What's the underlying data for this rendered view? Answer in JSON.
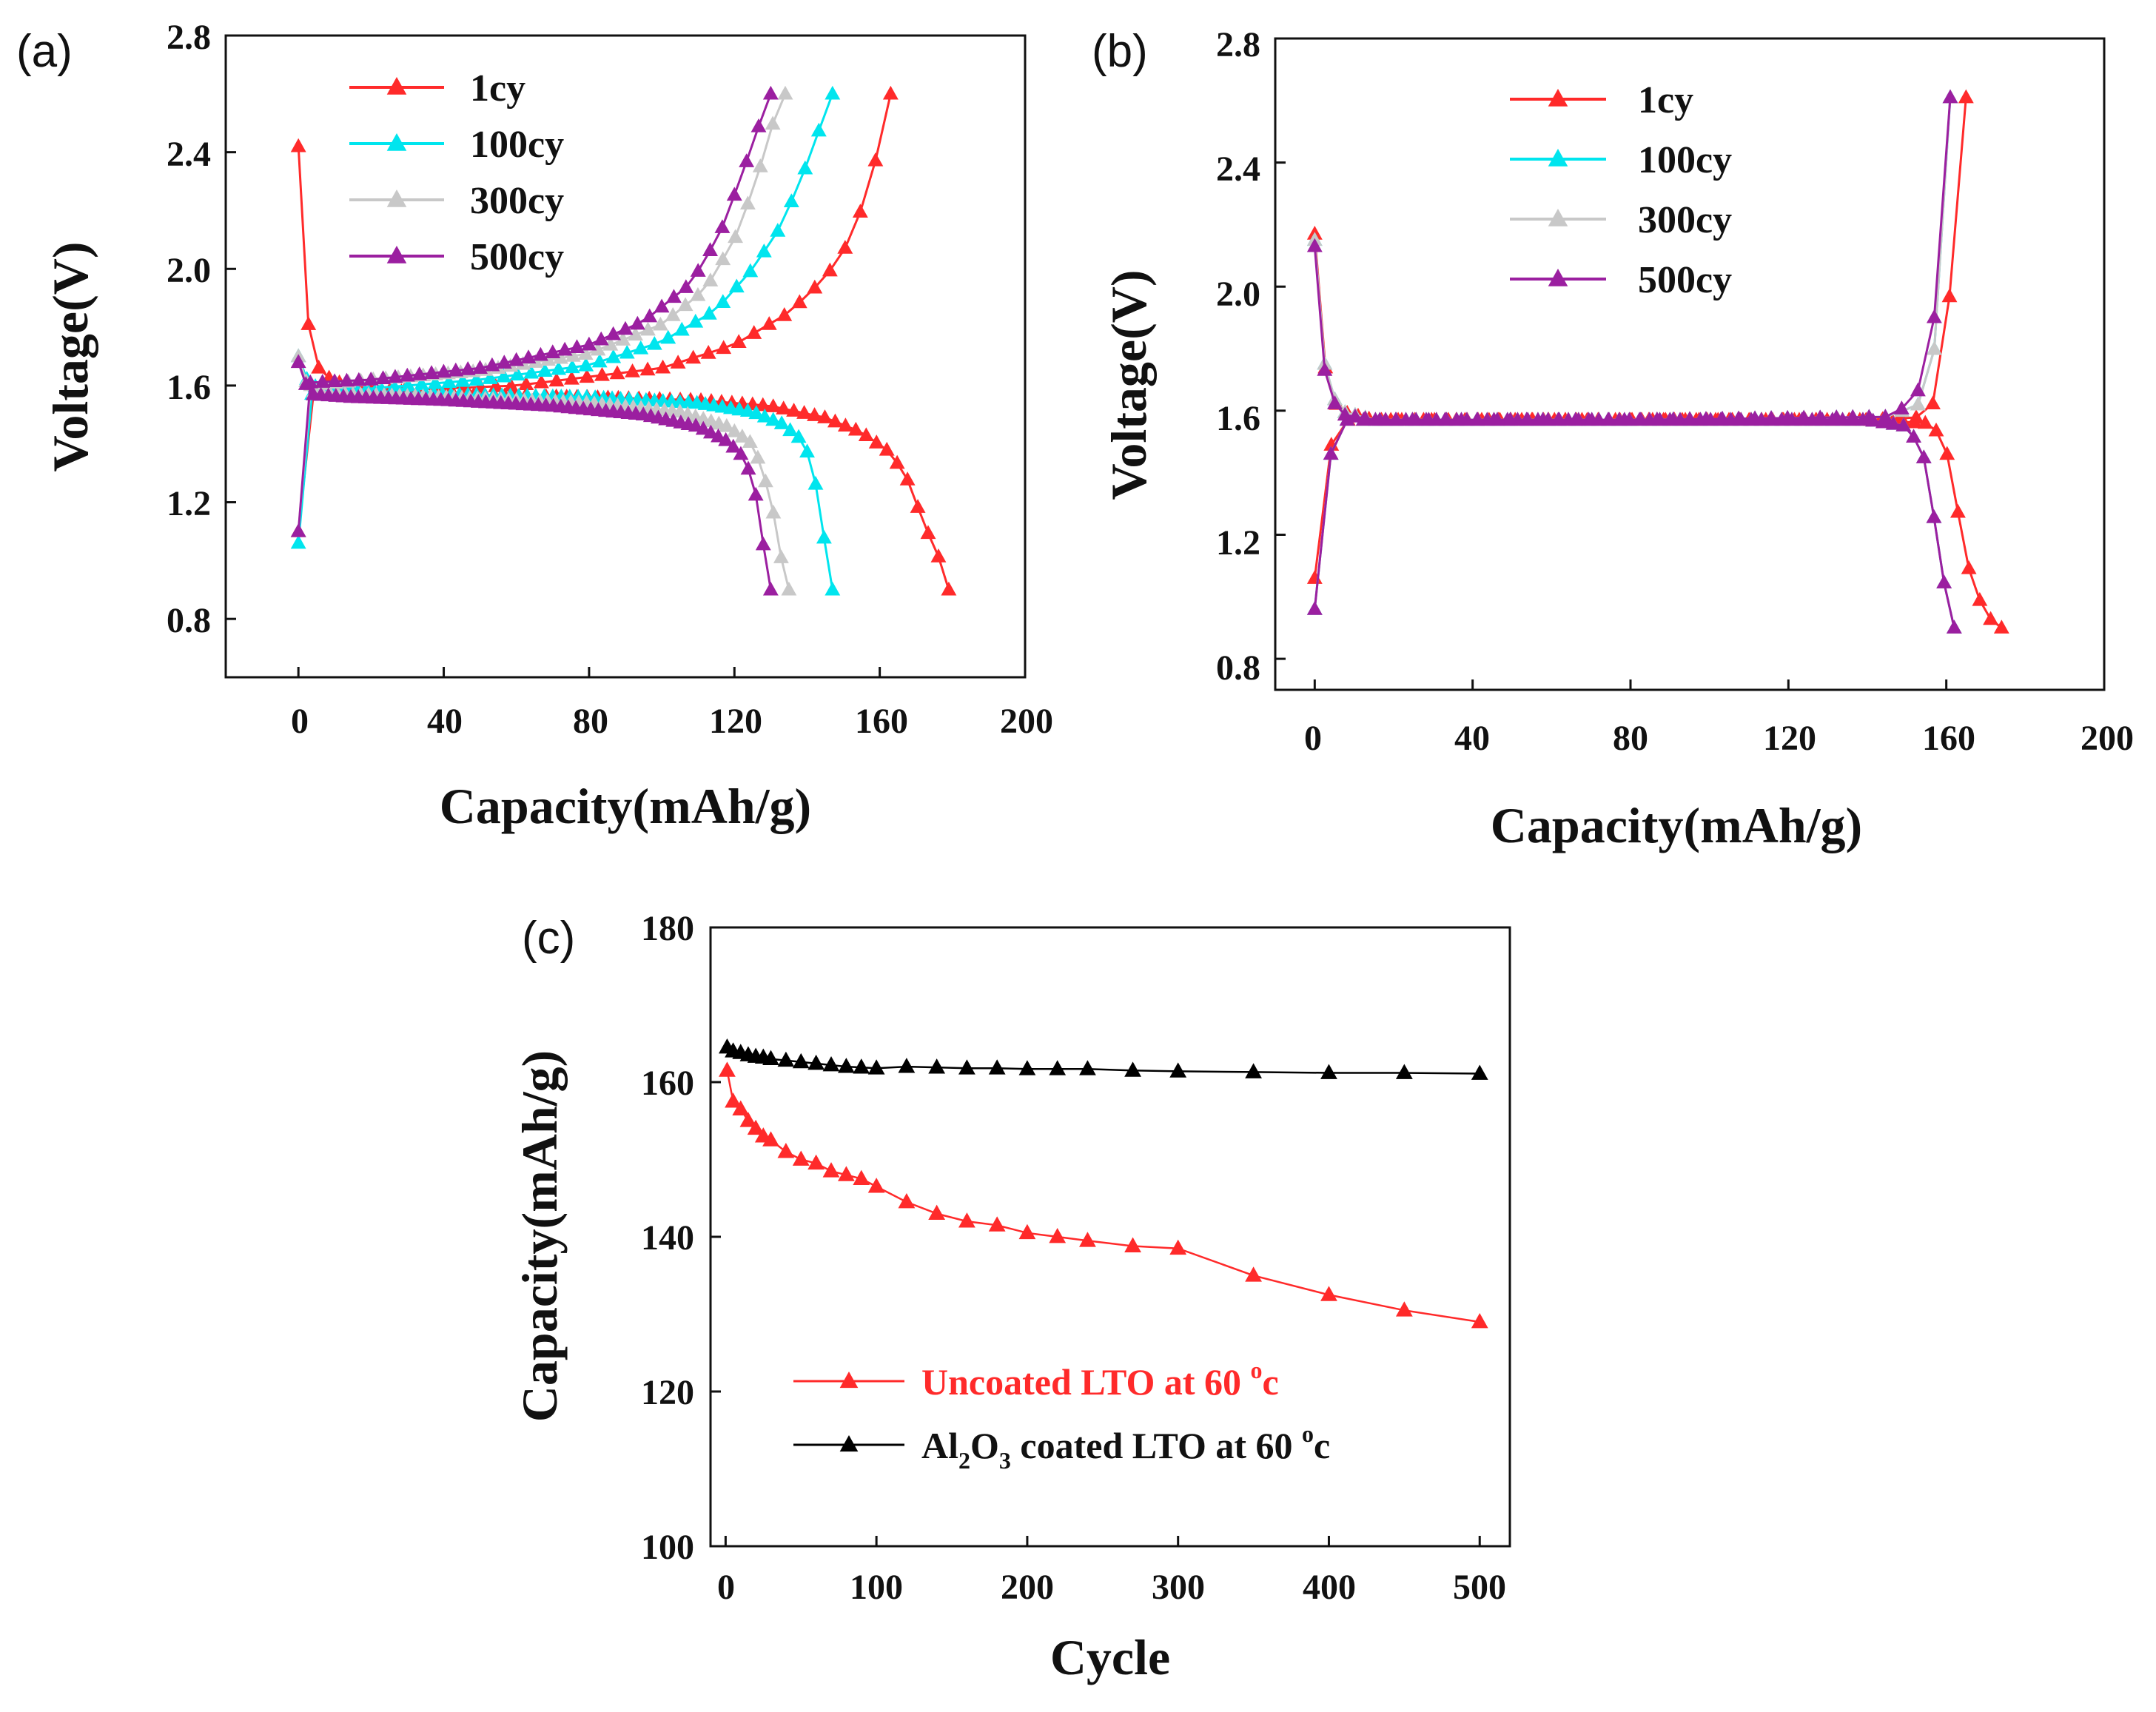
{
  "chart_data": [
    {
      "id": "a",
      "panel_label": "(a)",
      "type": "line",
      "xlabel": "Capacity(mAh/g)",
      "ylabel": "Voltage(V)",
      "xlim": [
        -20,
        200
      ],
      "ylim": [
        0.6,
        2.8
      ],
      "xticks": [
        "0",
        "40",
        "80",
        "120",
        "160",
        "200"
      ],
      "yticks": [
        "0.8",
        "1.2",
        "1.6",
        "2.0",
        "2.4",
        "2.8"
      ],
      "legend": [
        "1cy",
        "100cy",
        "300cy",
        "500cy"
      ],
      "series": [
        {
          "name": "1cy",
          "color": "#ff2a2a",
          "discharge": [
            [
              0,
              2.42
            ],
            [
              2,
              1.85
            ],
            [
              6,
              1.64
            ],
            [
              15,
              1.59
            ],
            [
              40,
              1.57
            ],
            [
              80,
              1.56
            ],
            [
              110,
              1.55
            ],
            [
              130,
              1.53
            ],
            [
              145,
              1.49
            ],
            [
              155,
              1.44
            ],
            [
              163,
              1.37
            ],
            [
              168,
              1.27
            ],
            [
              172,
              1.13
            ],
            [
              176,
              1.02
            ],
            [
              179,
              0.9
            ]
          ],
          "charge": [
            [
              0,
              1.1
            ],
            [
              3,
              1.57
            ],
            [
              20,
              1.58
            ],
            [
              60,
              1.6
            ],
            [
              100,
              1.66
            ],
            [
              120,
              1.74
            ],
            [
              135,
              1.85
            ],
            [
              145,
              1.97
            ],
            [
              152,
              2.1
            ],
            [
              157,
              2.28
            ],
            [
              160,
              2.43
            ],
            [
              163,
              2.6
            ]
          ]
        },
        {
          "name": "100cy",
          "color": "#00e5ee",
          "discharge": [
            [
              0,
              1.7
            ],
            [
              3,
              1.6
            ],
            [
              15,
              1.58
            ],
            [
              40,
              1.57
            ],
            [
              80,
              1.56
            ],
            [
              110,
              1.54
            ],
            [
              125,
              1.51
            ],
            [
              133,
              1.47
            ],
            [
              138,
              1.42
            ],
            [
              141,
              1.35
            ],
            [
              143,
              1.22
            ],
            [
              145,
              1.05
            ],
            [
              147,
              0.9
            ]
          ],
          "charge": [
            [
              0,
              1.06
            ],
            [
              3,
              1.57
            ],
            [
              20,
              1.59
            ],
            [
              50,
              1.62
            ],
            [
              80,
              1.67
            ],
            [
              100,
              1.75
            ],
            [
              115,
              1.86
            ],
            [
              125,
              2.0
            ],
            [
              133,
              2.15
            ],
            [
              138,
              2.3
            ],
            [
              142,
              2.42
            ],
            [
              145,
              2.55
            ],
            [
              147,
              2.6
            ]
          ]
        },
        {
          "name": "300cy",
          "color": "#c8c8c8",
          "discharge": [
            [
              0,
              1.7
            ],
            [
              3,
              1.58
            ],
            [
              15,
              1.57
            ],
            [
              40,
              1.56
            ],
            [
              80,
              1.54
            ],
            [
              105,
              1.51
            ],
            [
              118,
              1.46
            ],
            [
              125,
              1.4
            ],
            [
              128,
              1.3
            ],
            [
              131,
              1.15
            ],
            [
              133,
              1.0
            ],
            [
              135,
              0.9
            ]
          ],
          "charge": [
            [
              0,
              1.1
            ],
            [
              3,
              1.6
            ],
            [
              20,
              1.62
            ],
            [
              50,
              1.65
            ],
            [
              80,
              1.71
            ],
            [
              100,
              1.81
            ],
            [
              112,
              1.93
            ],
            [
              120,
              2.1
            ],
            [
              126,
              2.3
            ],
            [
              130,
              2.48
            ],
            [
              134,
              2.6
            ]
          ]
        },
        {
          "name": "500cy",
          "color": "#9b1fa0",
          "discharge": [
            [
              0,
              1.68
            ],
            [
              3,
              1.57
            ],
            [
              15,
              1.56
            ],
            [
              40,
              1.55
            ],
            [
              70,
              1.53
            ],
            [
              95,
              1.5
            ],
            [
              110,
              1.46
            ],
            [
              118,
              1.41
            ],
            [
              123,
              1.35
            ],
            [
              126,
              1.22
            ],
            [
              128,
              1.05
            ],
            [
              130,
              0.9
            ]
          ],
          "charge": [
            [
              0,
              1.1
            ],
            [
              3,
              1.61
            ],
            [
              20,
              1.62
            ],
            [
              50,
              1.66
            ],
            [
              80,
              1.74
            ],
            [
              95,
              1.82
            ],
            [
              108,
              1.95
            ],
            [
              116,
              2.12
            ],
            [
              122,
              2.32
            ],
            [
              127,
              2.5
            ],
            [
              130,
              2.6
            ]
          ]
        }
      ]
    },
    {
      "id": "b",
      "panel_label": "(b)",
      "type": "line",
      "xlabel": "Capacity(mAh/g)",
      "ylabel": "Voltage(V)",
      "xlim": [
        -10,
        200
      ],
      "ylim": [
        0.7,
        2.8
      ],
      "xticks": [
        "0",
        "40",
        "80",
        "120",
        "160",
        "200"
      ],
      "yticks": [
        "0.8",
        "1.2",
        "1.6",
        "2.0",
        "2.4",
        "2.8"
      ],
      "legend": [
        "1cy",
        "100cy",
        "300cy",
        "500cy"
      ],
      "series": [
        {
          "name": "1cy",
          "color": "#ff2a2a",
          "discharge": [
            [
              0,
              2.17
            ],
            [
              1,
              1.85
            ],
            [
              3,
              1.72
            ],
            [
              6,
              1.6
            ],
            [
              15,
              1.57
            ],
            [
              80,
              1.57
            ],
            [
              140,
              1.57
            ],
            [
              155,
              1.56
            ],
            [
              159,
              1.52
            ],
            [
              161,
              1.42
            ],
            [
              163,
              1.27
            ],
            [
              165,
              1.12
            ],
            [
              168,
              1.0
            ],
            [
              171,
              0.93
            ],
            [
              174,
              0.9
            ]
          ],
          "charge": [
            [
              0,
              1.06
            ],
            [
              5,
              1.57
            ],
            [
              80,
              1.57
            ],
            [
              140,
              1.57
            ],
            [
              155,
              1.58
            ],
            [
              158,
              1.66
            ],
            [
              160,
              1.85
            ],
            [
              162,
              2.14
            ],
            [
              164,
              2.45
            ],
            [
              165,
              2.61
            ]
          ]
        },
        {
          "name": "100cy",
          "color": "#00e5ee",
          "discharge": [
            [
              0,
              2.15
            ],
            [
              1,
              1.85
            ],
            [
              3,
              1.72
            ],
            [
              6,
              1.6
            ],
            [
              15,
              1.57
            ],
            [
              80,
              1.57
            ],
            [
              140,
              1.57
            ],
            [
              150,
              1.55
            ],
            [
              154,
              1.47
            ],
            [
              156,
              1.33
            ],
            [
              158,
              1.16
            ],
            [
              160,
              1.0
            ],
            [
              162,
              0.9
            ]
          ],
          "charge": [
            [
              0,
              0.96
            ],
            [
              5,
              1.57
            ],
            [
              80,
              1.57
            ],
            [
              145,
              1.58
            ],
            [
              153,
              1.62
            ],
            [
              157,
              1.8
            ],
            [
              159,
              2.12
            ],
            [
              160,
              2.45
            ],
            [
              161,
              2.61
            ]
          ]
        },
        {
          "name": "300cy",
          "color": "#c8c8c8",
          "discharge": [
            [
              0,
              2.15
            ],
            [
              1,
              1.85
            ],
            [
              3,
              1.72
            ],
            [
              6,
              1.6
            ],
            [
              15,
              1.57
            ],
            [
              80,
              1.57
            ],
            [
              140,
              1.57
            ],
            [
              150,
              1.55
            ],
            [
              154,
              1.47
            ],
            [
              156,
              1.33
            ],
            [
              158,
              1.16
            ],
            [
              160,
              1.0
            ],
            [
              162,
              0.9
            ]
          ],
          "charge": [
            [
              0,
              0.96
            ],
            [
              5,
              1.57
            ],
            [
              80,
              1.57
            ],
            [
              145,
              1.58
            ],
            [
              153,
              1.62
            ],
            [
              157,
              1.8
            ],
            [
              159,
              2.12
            ],
            [
              160,
              2.45
            ],
            [
              161,
              2.61
            ]
          ]
        },
        {
          "name": "500cy",
          "color": "#9b1fa0",
          "discharge": [
            [
              0,
              2.13
            ],
            [
              1,
              1.83
            ],
            [
              3,
              1.7
            ],
            [
              6,
              1.59
            ],
            [
              15,
              1.57
            ],
            [
              80,
              1.57
            ],
            [
              140,
              1.57
            ],
            [
              150,
              1.55
            ],
            [
              154,
              1.47
            ],
            [
              156,
              1.33
            ],
            [
              158,
              1.16
            ],
            [
              160,
              1.0
            ],
            [
              162,
              0.9
            ]
          ],
          "charge": [
            [
              0,
              0.96
            ],
            [
              5,
              1.57
            ],
            [
              80,
              1.57
            ],
            [
              145,
              1.58
            ],
            [
              152,
              1.63
            ],
            [
              156,
              1.8
            ],
            [
              159,
              2.12
            ],
            [
              160,
              2.45
            ],
            [
              161,
              2.61
            ]
          ]
        }
      ]
    },
    {
      "id": "c",
      "panel_label": "(c)",
      "type": "line",
      "xlabel": "Cycle",
      "ylabel": "Capacity(mAh/g)",
      "xlim": [
        -10,
        520
      ],
      "ylim": [
        100,
        180
      ],
      "xticks": [
        "0",
        "100",
        "200",
        "300",
        "400",
        "500"
      ],
      "yticks": [
        "100",
        "120",
        "140",
        "160",
        "180"
      ],
      "series": [
        {
          "name": "Uncoated LTO at 60 °c",
          "color": "#ff2a2a",
          "x": [
            1,
            5,
            10,
            15,
            20,
            25,
            30,
            40,
            50,
            60,
            70,
            80,
            90,
            100,
            120,
            140,
            160,
            180,
            200,
            220,
            240,
            270,
            300,
            350,
            400,
            450,
            500
          ],
          "y": [
            161.5,
            157.5,
            156.5,
            155,
            154,
            153,
            152.5,
            151,
            150,
            149.5,
            148.5,
            148,
            147.5,
            146.5,
            144.5,
            143,
            142,
            141.5,
            140.5,
            140,
            139.5,
            138.8,
            138.5,
            135,
            132.5,
            130.5,
            129
          ]
        },
        {
          "name": "coated LTO at 60 °c",
          "color": "#000000",
          "x": [
            1,
            5,
            10,
            15,
            20,
            25,
            30,
            40,
            50,
            60,
            70,
            80,
            90,
            100,
            120,
            140,
            160,
            180,
            200,
            220,
            240,
            270,
            300,
            350,
            400,
            450,
            500
          ],
          "y": [
            164.5,
            164,
            163.8,
            163.5,
            163.3,
            163.2,
            163,
            162.8,
            162.6,
            162.4,
            162.2,
            162,
            161.9,
            161.8,
            162,
            161.9,
            161.8,
            161.8,
            161.7,
            161.7,
            161.7,
            161.5,
            161.4,
            161.3,
            161.2,
            161.2,
            161.1
          ]
        }
      ],
      "legend_labels": {
        "uncoated": "Uncoated LTO at 60",
        "coated_prefix": "Al",
        "coated_sub1": "2",
        "coated_o": "O",
        "coated_sub2": "3",
        "coated_rest": " coated LTO at 60",
        "degree": "o",
        "unit": "c"
      }
    }
  ]
}
